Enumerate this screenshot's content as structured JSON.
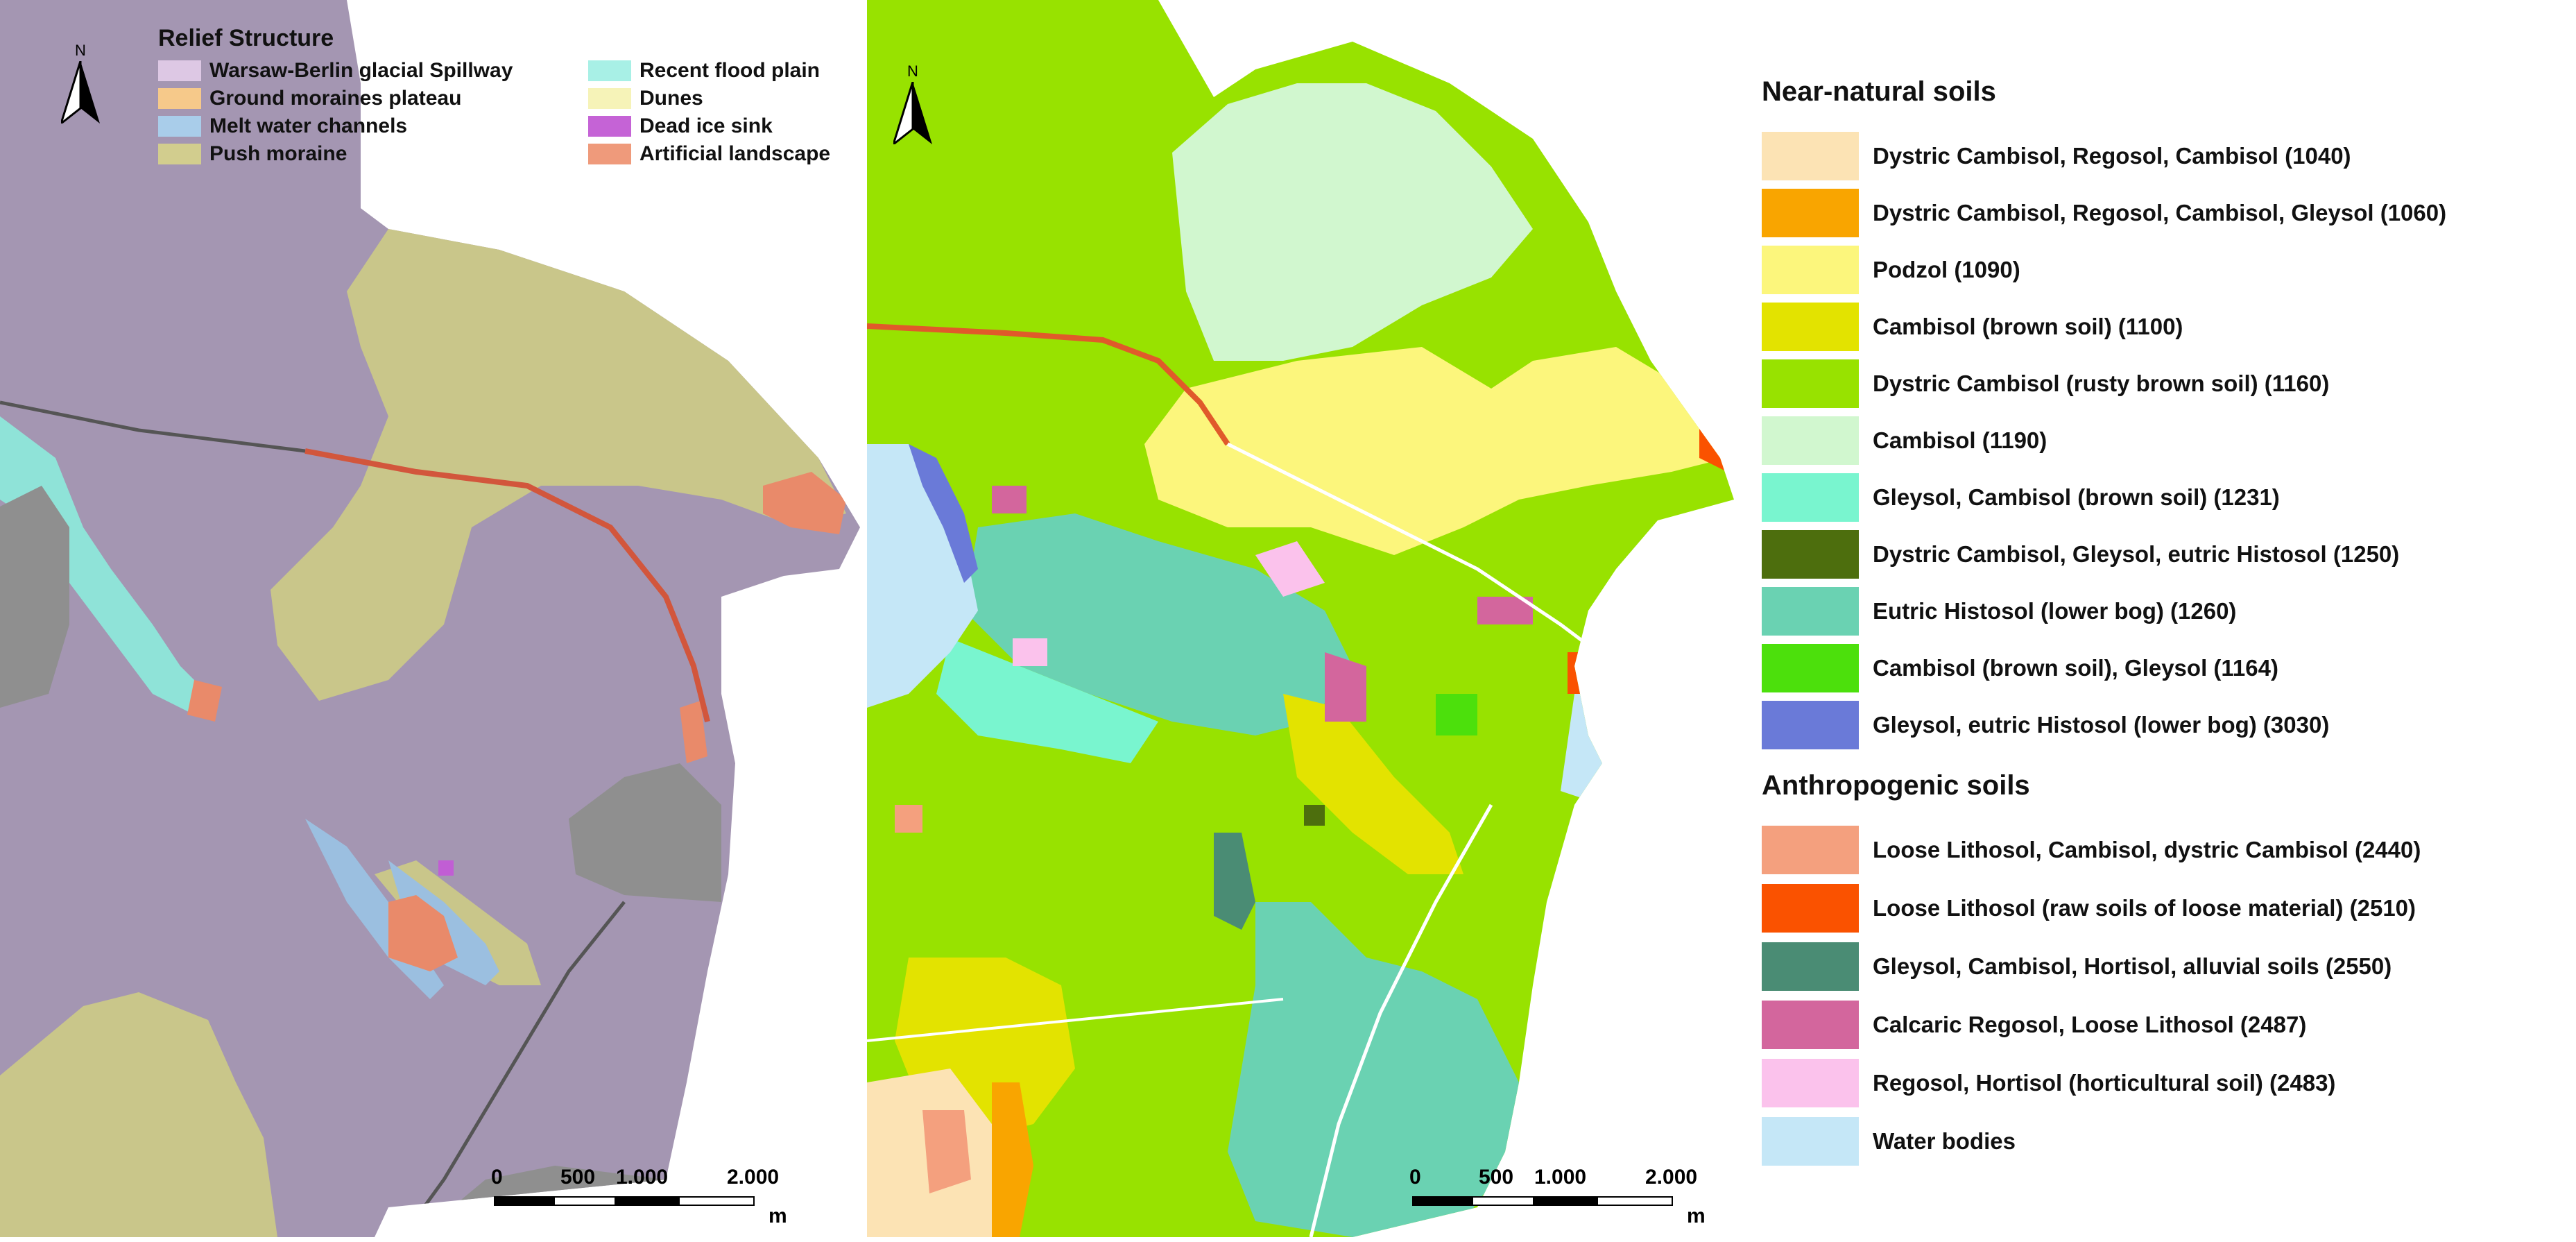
{
  "left_map": {
    "north_label": "N",
    "legend": {
      "title": "Relief Structure",
      "items": [
        {
          "label": "Warsaw-Berlin glacial Spillway",
          "color": "#ddc8e4"
        },
        {
          "label": "Ground moraines plateau",
          "color": "#f6c98a"
        },
        {
          "label": "Melt water channels",
          "color": "#a9cdea"
        },
        {
          "label": "Push moraine",
          "color": "#d2cd8e"
        },
        {
          "label": "Recent flood plain",
          "color": "#a8f0e6"
        },
        {
          "label": "Dunes",
          "color": "#f6f3b8"
        },
        {
          "label": "Dead ice sink",
          "color": "#c563d6"
        },
        {
          "label": "Artificial landscape",
          "color": "#ef9a7b"
        }
      ]
    },
    "scale": {
      "ticks": [
        "0",
        "500",
        "1.000",
        "2.000"
      ],
      "unit": "m"
    }
  },
  "right_map": {
    "north_label": "N",
    "scale": {
      "ticks": [
        "0",
        "500",
        "1.000",
        "2.000"
      ],
      "unit": "m"
    }
  },
  "soil_legend": {
    "near_natural": {
      "title": "Near-natural soils",
      "items": [
        {
          "label": "Dystric Cambisol, Regosol, Cambisol (1040)",
          "color": "#fce3b4"
        },
        {
          "label": "Dystric Cambisol, Regosol, Cambisol, Gleysol (1060)",
          "color": "#f9a500"
        },
        {
          "label": "Podzol (1090)",
          "color": "#fcf67c"
        },
        {
          "label": "Cambisol (brown soil) (1100)",
          "color": "#e3e300"
        },
        {
          "label": "Dystric Cambisol  (rusty brown soil) (1160)",
          "color": "#98e200"
        },
        {
          "label": "Cambisol (1190)",
          "color": "#d1f7cf"
        },
        {
          "label": "Gleysol, Cambisol (brown soil) (1231)",
          "color": "#79f5cf"
        },
        {
          "label": "Dystric Cambisol, Gleysol, eutric Histosol (1250)",
          "color": "#4d6e0d"
        },
        {
          "label": "Eutric Histosol (lower bog) (1260)",
          "color": "#6ad2b2"
        },
        {
          "label": "Cambisol (brown soil), Gleysol (1164)",
          "color": "#4ce00c"
        },
        {
          "label": "Gleysol, eutric Histosol (lower bog) (3030)",
          "color": "#6a7ad8"
        }
      ]
    },
    "anthropogenic": {
      "title": "Anthropogenic soils",
      "items": [
        {
          "label": "Loose Lithosol, Cambisol, dystric Cambisol (2440)",
          "color": "#f4a07e"
        },
        {
          "label": "Loose Lithosol (raw soils of loose material) (2510)",
          "color": "#fa5200"
        },
        {
          "label": "Gleysol, Cambisol, Hortisol, alluvial soils (2550)",
          "color": "#4a8c74"
        },
        {
          "label": "Calcaric Regosol, Loose Lithosol (2487)",
          "color": "#d3669d"
        },
        {
          "label": "Regosol, Hortisol (horticultural soil) (2483)",
          "color": "#fbc2ec"
        }
      ]
    },
    "water": {
      "label": "Water bodies",
      "color": "#c5e7f7"
    }
  }
}
